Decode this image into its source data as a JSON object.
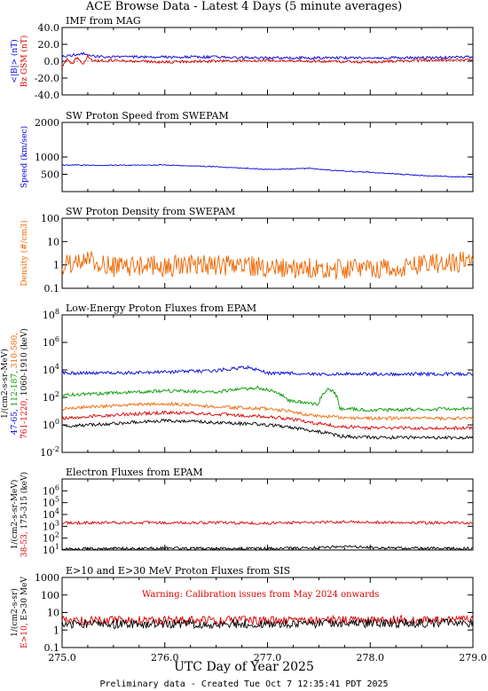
{
  "figure": {
    "title": "ACE Browse Data - Latest 4 Days (5 minute averages)",
    "xlabel": "UTC Day of Year 2025",
    "footer": "Preliminary data - Created Tue Oct  7 12:35:41 PDT 2025",
    "x_ticks": [
      "275.0",
      "276.0",
      "277.0",
      "278.0",
      "279.0"
    ]
  },
  "chart_data": [
    {
      "type": "line",
      "title": "IMF from MAG",
      "xlim": [
        275.0,
        279.0
      ],
      "ylim": [
        -40,
        40
      ],
      "yscale": "linear",
      "yticks": [
        "40.0",
        "20.0",
        "0.0",
        "-20.0",
        "-40.0"
      ],
      "ylabel_lines": [
        {
          "text": "<|B|> (nT)",
          "color": "#0000dd"
        },
        {
          "text": "Bz GSM (nT)",
          "color": "#dd0000"
        }
      ],
      "series": [
        {
          "name": "<|B|>",
          "color": "#0000dd",
          "x": [
            275.0,
            275.1,
            275.2,
            275.3,
            275.5,
            276.0,
            276.5,
            277.0,
            277.5,
            278.0,
            278.5,
            279.0
          ],
          "y": [
            6,
            7,
            9,
            6,
            5,
            5,
            5,
            4,
            4,
            4,
            4,
            5
          ]
        },
        {
          "name": "Bz GSM",
          "color": "#dd0000",
          "x": [
            275.0,
            275.05,
            275.1,
            275.15,
            275.2,
            275.25,
            275.3,
            275.5,
            276.0,
            276.5,
            277.0,
            277.5,
            278.0,
            278.5,
            279.0
          ],
          "y": [
            -7,
            2,
            -3,
            5,
            -5,
            7,
            0,
            1,
            -1,
            0,
            1,
            0,
            -1,
            1,
            2
          ]
        }
      ]
    },
    {
      "type": "line",
      "title": "SW Proton Speed from SWEPAM",
      "xlim": [
        275.0,
        279.0
      ],
      "ylim": [
        0,
        2000
      ],
      "yscale": "linear",
      "yticks": [
        "2000",
        "1000",
        "500"
      ],
      "ylabel_lines": [
        {
          "text": "Speed (km/sec)",
          "color": "#0000dd"
        }
      ],
      "series": [
        {
          "name": "Speed",
          "color": "#0000dd",
          "x": [
            275.0,
            275.5,
            276.0,
            276.5,
            276.8,
            277.0,
            277.4,
            277.7,
            278.0,
            278.3,
            278.6,
            279.0
          ],
          "y": [
            770,
            760,
            770,
            720,
            670,
            640,
            670,
            600,
            560,
            500,
            450,
            420
          ]
        }
      ]
    },
    {
      "type": "line",
      "title": "SW Proton Density from SWEPAM",
      "xlim": [
        275.0,
        279.0
      ],
      "ylim": [
        0.1,
        100
      ],
      "yscale": "log",
      "yticks": [
        "100",
        "10",
        "1",
        "0.1"
      ],
      "ylabel_lines": [
        {
          "text": "Density (#/cm3)",
          "color": "#ee6600"
        }
      ],
      "series": [
        {
          "name": "Density",
          "color": "#ee6600",
          "x": [
            275.0,
            275.25,
            275.5,
            276.0,
            276.5,
            277.0,
            277.5,
            278.0,
            278.5,
            279.0
          ],
          "y": [
            1.0,
            1.6,
            0.8,
            0.9,
            1.0,
            0.8,
            0.7,
            0.6,
            0.9,
            1.5
          ]
        }
      ]
    },
    {
      "type": "line",
      "title": "Low-Energy Proton Fluxes from EPAM",
      "xlim": [
        275.0,
        279.0
      ],
      "ylim": [
        0.01,
        100000000
      ],
      "yscale": "log",
      "yticks": [
        "10^8",
        "10^6",
        "10^4",
        "10^2",
        "10^0",
        "10^-2"
      ],
      "ylabel_lines": [
        {
          "text": "1/(cm2-s-sr-MeV)",
          "color": "#000000"
        },
        {
          "parts": [
            {
              "text": "47-65,",
              "color": "#0000dd"
            },
            {
              "text": "112-187,",
              "color": "#009900"
            },
            {
              "text": "310-580,",
              "color": "#ee6600"
            }
          ]
        },
        {
          "parts": [
            {
              "text": "761-1220,",
              "color": "#dd0000"
            },
            {
              "text": "1060-1910 (keV)",
              "color": "#000000"
            }
          ]
        }
      ],
      "series": [
        {
          "name": "47-65 keV",
          "color": "#0000dd",
          "x": [
            275.0,
            275.5,
            276.0,
            276.5,
            276.8,
            277.0,
            277.5,
            278.0,
            279.0
          ],
          "y": [
            6000,
            6000,
            7000,
            9000,
            15000,
            6000,
            5000,
            5000,
            5000
          ]
        },
        {
          "name": "112-187 keV",
          "color": "#009900",
          "x": [
            275.0,
            275.5,
            276.0,
            276.5,
            276.9,
            277.2,
            277.5,
            277.6,
            277.7,
            278.0,
            279.0
          ],
          "y": [
            150,
            200,
            300,
            250,
            500,
            60,
            30,
            400,
            15,
            12,
            15
          ]
        },
        {
          "name": "310-580 keV",
          "color": "#ee6600",
          "x": [
            275.0,
            275.5,
            276.0,
            276.5,
            277.0,
            277.4,
            277.6,
            277.8,
            278.0,
            279.0
          ],
          "y": [
            15,
            25,
            35,
            20,
            15,
            5,
            4,
            3,
            3,
            3
          ]
        },
        {
          "name": "761-1220 keV",
          "color": "#dd0000",
          "x": [
            275.0,
            275.5,
            276.0,
            276.5,
            277.0,
            277.4,
            277.7,
            278.0,
            279.0
          ],
          "y": [
            3,
            5,
            8,
            6,
            4,
            1.5,
            0.8,
            0.6,
            0.6
          ]
        },
        {
          "name": "1060-1910 keV",
          "color": "#000000",
          "x": [
            275.0,
            275.5,
            276.0,
            276.5,
            277.0,
            277.4,
            277.7,
            278.0,
            279.0
          ],
          "y": [
            0.8,
            1.2,
            2.0,
            1.5,
            1.0,
            0.4,
            0.15,
            0.12,
            0.12
          ]
        }
      ]
    },
    {
      "type": "line",
      "title": "Electron Fluxes from EPAM",
      "xlim": [
        275.0,
        279.0
      ],
      "ylim": [
        10,
        10000000
      ],
      "yscale": "log",
      "yticks": [
        "10^6",
        "10^5",
        "10^4",
        "10^3",
        "10^2",
        "10^1"
      ],
      "ylabel_lines": [
        {
          "text": "1/(cm2-s-sr-MeV)",
          "color": "#000000"
        },
        {
          "parts": [
            {
              "text": "38-53,",
              "color": "#dd0000"
            },
            {
              "text": "175-315 (keV)",
              "color": "#000000"
            }
          ]
        }
      ],
      "series": [
        {
          "name": "38-53 keV",
          "color": "#dd0000",
          "x": [
            275.0,
            275.5,
            276.0,
            276.5,
            277.0,
            277.5,
            277.8,
            278.0,
            278.5,
            279.0
          ],
          "y": [
            2000,
            2000,
            2100,
            2000,
            1900,
            2100,
            2600,
            2200,
            2000,
            2000
          ]
        },
        {
          "name": "175-315 keV",
          "color": "#000000",
          "x": [
            275.0,
            275.5,
            276.0,
            276.5,
            277.0,
            277.5,
            277.8,
            278.0,
            278.5,
            279.0
          ],
          "y": [
            12,
            13,
            14,
            13,
            13,
            15,
            20,
            16,
            14,
            13
          ]
        }
      ]
    },
    {
      "type": "line",
      "title": "E>10 and E>30 MeV Proton Fluxes from SIS",
      "xlim": [
        275.0,
        279.0
      ],
      "ylim": [
        0.1,
        1000
      ],
      "yscale": "log",
      "yticks": [
        "1000",
        "100",
        "10",
        "1",
        "0.1"
      ],
      "annotation": "Warning: Calibration issues from May 2024 onwards",
      "ylabel_lines": [
        {
          "text": "1/(cm2-s-sr)",
          "color": "#000000"
        },
        {
          "parts": [
            {
              "text": "E>10,",
              "color": "#dd0000"
            },
            {
              "text": "E>30 MeV",
              "color": "#000000"
            }
          ]
        }
      ],
      "series": [
        {
          "name": "E>10 MeV",
          "color": "#dd0000",
          "x": [
            275.0,
            276.0,
            277.0,
            278.0,
            279.0
          ],
          "y": [
            3.5,
            3.5,
            3.6,
            3.8,
            4.0
          ]
        },
        {
          "name": "E>30 MeV",
          "color": "#000000",
          "x": [
            275.0,
            276.0,
            277.0,
            278.0,
            279.0
          ],
          "y": [
            2.2,
            2.2,
            2.3,
            2.4,
            2.5
          ]
        }
      ]
    }
  ]
}
